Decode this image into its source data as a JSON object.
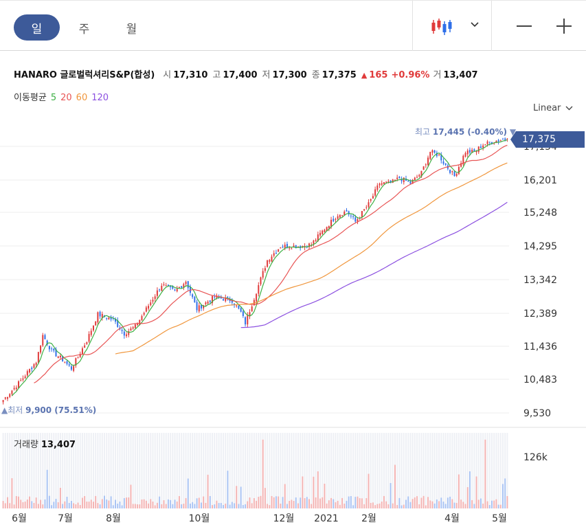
{
  "tabs": [
    {
      "label": "일",
      "active": true
    },
    {
      "label": "주",
      "active": false
    },
    {
      "label": "월",
      "active": false
    }
  ],
  "toolbar": {
    "chart_type_icon": "candlestick-icon",
    "dropdown_icon": "chevron-down-icon",
    "zoom_out_icon": "minus-icon",
    "zoom_in_icon": "plus-icon"
  },
  "quote": {
    "name": "HANARO 글로벌럭셔리S&P(합성)",
    "open_label": "시",
    "open": "17,310",
    "high_label": "고",
    "high": "17,400",
    "low_label": "저",
    "low": "17,300",
    "close_label": "종",
    "close": "17,375",
    "change": "165",
    "change_pct": "+0.96%",
    "volume_label": "거",
    "volume": "13,407"
  },
  "ma_legend": {
    "title": "이동평균",
    "items": [
      {
        "label": "5",
        "color": "#3cb043"
      },
      {
        "label": "20",
        "color": "#e85454"
      },
      {
        "label": "60",
        "color": "#f0963c"
      },
      {
        "label": "120",
        "color": "#8b4fe0"
      }
    ]
  },
  "scale": {
    "label": "Linear"
  },
  "annotations": {
    "high_label": "최고",
    "high_value": "17,445 (-0.40%)",
    "low_label": "최저",
    "low_value": "9,900 (75.51%)",
    "current_price": "17,375"
  },
  "volume_panel": {
    "label": "거래량",
    "value": "13,407",
    "axis_label": "126k"
  },
  "colors": {
    "up": "#e03a3a",
    "down": "#2f6fe8",
    "accent": "#3d5a99",
    "ma5": "#3cb043",
    "ma20": "#e85454",
    "ma60": "#f0963c",
    "ma120": "#8b4fe0"
  },
  "chart_data": {
    "type": "candlestick",
    "y_ticks": [
      "17,154",
      "16,201",
      "15,248",
      "14,295",
      "13,342",
      "12,389",
      "11,436",
      "10,483",
      "9,530"
    ],
    "y_range": [
      9530,
      17600
    ],
    "x_ticks": [
      "6월",
      "7월",
      "8월",
      "10월",
      "12월",
      "2021",
      "2월",
      "4월",
      "5월"
    ],
    "close_waypoints": [
      [
        0,
        9900
      ],
      [
        8,
        10450
      ],
      [
        15,
        11000
      ],
      [
        18,
        11750
      ],
      [
        22,
        11300
      ],
      [
        27,
        11050
      ],
      [
        31,
        10800
      ],
      [
        38,
        11600
      ],
      [
        43,
        12350
      ],
      [
        50,
        12200
      ],
      [
        55,
        11800
      ],
      [
        60,
        12000
      ],
      [
        66,
        12600
      ],
      [
        72,
        13200
      ],
      [
        78,
        13000
      ],
      [
        83,
        13300
      ],
      [
        88,
        12500
      ],
      [
        96,
        12850
      ],
      [
        104,
        12750
      ],
      [
        108,
        12400
      ],
      [
        110,
        12100
      ],
      [
        115,
        13000
      ],
      [
        120,
        13900
      ],
      [
        126,
        14300
      ],
      [
        135,
        14300
      ],
      [
        140,
        14350
      ],
      [
        146,
        14800
      ],
      [
        152,
        15200
      ],
      [
        156,
        15300
      ],
      [
        160,
        15000
      ],
      [
        166,
        15500
      ],
      [
        171,
        16100
      ],
      [
        176,
        16100
      ],
      [
        180,
        16250
      ],
      [
        185,
        16100
      ],
      [
        190,
        16400
      ],
      [
        194,
        17000
      ],
      [
        198,
        16900
      ],
      [
        200,
        16700
      ],
      [
        205,
        16300
      ],
      [
        210,
        17000
      ],
      [
        214,
        17000
      ],
      [
        218,
        17200
      ],
      [
        223,
        17300
      ],
      [
        229,
        17375
      ]
    ],
    "ma_start_index": {
      "ma5": 4,
      "ma20": 14,
      "ma60": 51,
      "ma120": 108
    },
    "volume_max": 140000
  }
}
